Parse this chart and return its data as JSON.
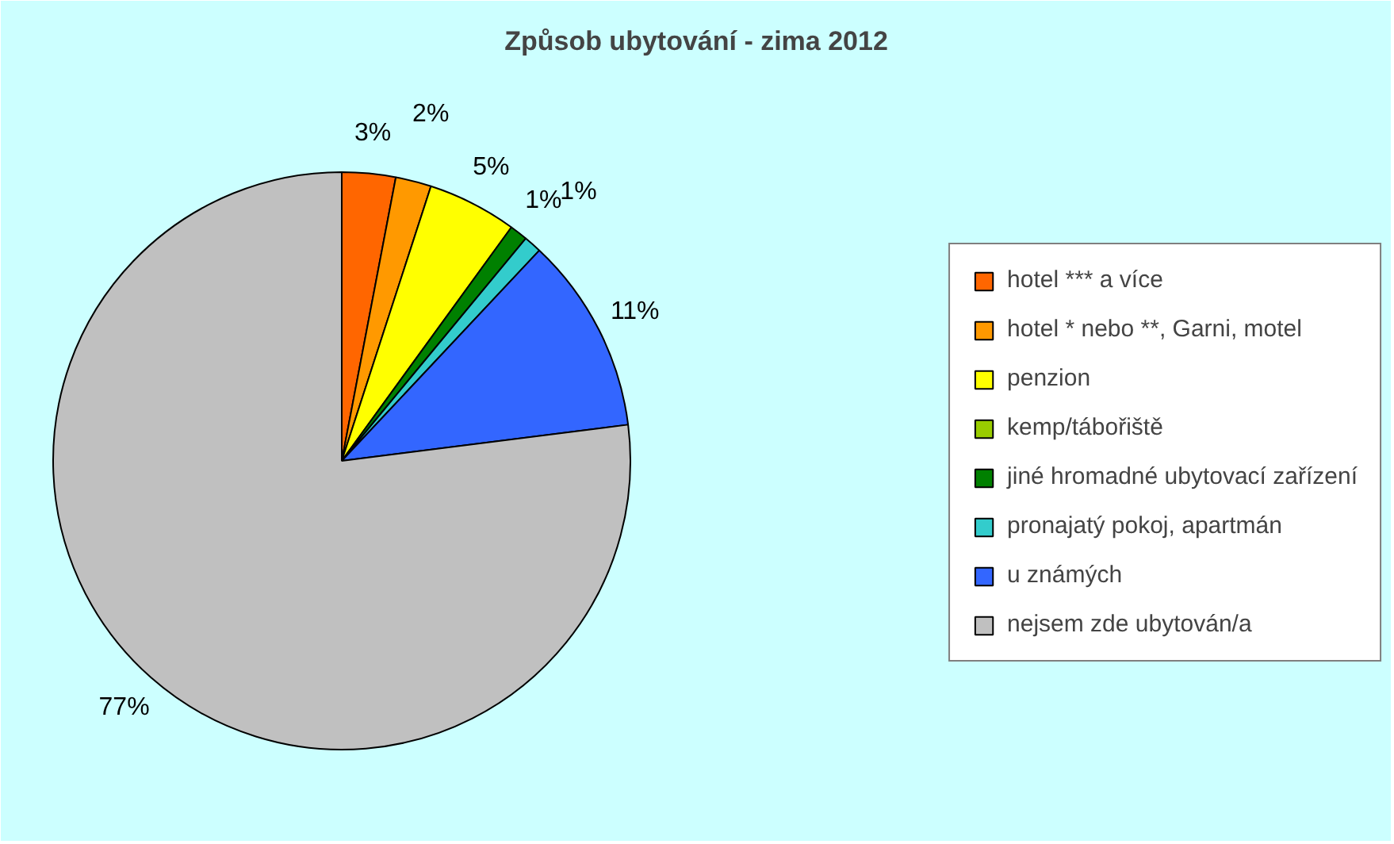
{
  "chart_data": {
    "type": "pie",
    "title": "Způsob ubytování - zima 2012",
    "categories": [
      "hotel *** a více",
      "hotel * nebo **, Garni, motel",
      "penzion",
      "kemp/tábořiště",
      "jiné hromadné ubytovací zařízení",
      "pronajatý pokoj, apartmán",
      "u známých",
      "nejsem zde ubytován/a"
    ],
    "values": [
      3,
      2,
      5,
      0,
      1,
      1,
      11,
      77
    ],
    "colors": [
      "#ff6600",
      "#ff9900",
      "#ffff00",
      "#99cc00",
      "#008000",
      "#33cccc",
      "#3366ff",
      "#c0c0c0"
    ],
    "value_labels": [
      "3%",
      "2%",
      "5%",
      null,
      "1%",
      "1%",
      "11%",
      "77%"
    ],
    "legend": "right"
  }
}
